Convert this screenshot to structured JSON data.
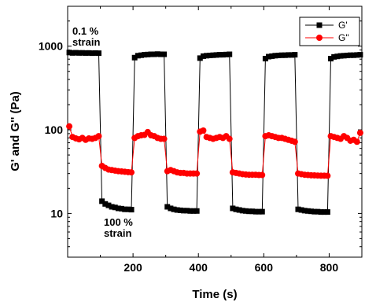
{
  "chart_data": {
    "type": "scatter",
    "title": "",
    "xlabel": "Time (s)",
    "ylabel": "G' and G'' (Pa)",
    "xlim": [
      0,
      900
    ],
    "ylim": [
      3,
      3000
    ],
    "y_scale": "log",
    "x_ticks": [
      200,
      400,
      600,
      800
    ],
    "y_ticks": [
      10,
      100,
      1000
    ],
    "x_tick_labels": [
      "200",
      "400",
      "600",
      "800"
    ],
    "y_tick_labels": [
      "10",
      "100",
      "1000"
    ],
    "grid": false,
    "legend_position": "top-right",
    "annotations": {
      "low_strain": [
        "0.1 %",
        "strain"
      ],
      "high_strain": [
        "100 %",
        "strain"
      ]
    },
    "series": [
      {
        "name": "G'",
        "color": "#000000",
        "marker": "square",
        "points": [
          [
            5,
            840
          ],
          [
            15,
            830
          ],
          [
            25,
            835
          ],
          [
            35,
            830
          ],
          [
            45,
            832
          ],
          [
            55,
            828
          ],
          [
            65,
            830
          ],
          [
            75,
            825
          ],
          [
            85,
            828
          ],
          [
            95,
            825
          ],
          [
            105,
            14
          ],
          [
            115,
            13
          ],
          [
            125,
            12.5
          ],
          [
            135,
            12
          ],
          [
            145,
            11.8
          ],
          [
            155,
            11.5
          ],
          [
            165,
            11.4
          ],
          [
            175,
            11.2
          ],
          [
            185,
            11.2
          ],
          [
            195,
            11.1
          ],
          [
            205,
            730
          ],
          [
            215,
            770
          ],
          [
            225,
            780
          ],
          [
            235,
            790
          ],
          [
            245,
            795
          ],
          [
            255,
            800
          ],
          [
            265,
            800
          ],
          [
            275,
            805
          ],
          [
            285,
            800
          ],
          [
            295,
            800
          ],
          [
            305,
            12
          ],
          [
            315,
            11.5
          ],
          [
            325,
            11.2
          ],
          [
            335,
            11
          ],
          [
            345,
            10.9
          ],
          [
            355,
            10.8
          ],
          [
            365,
            10.8
          ],
          [
            375,
            10.7
          ],
          [
            385,
            10.7
          ],
          [
            395,
            10.7
          ],
          [
            405,
            720
          ],
          [
            415,
            760
          ],
          [
            425,
            770
          ],
          [
            435,
            775
          ],
          [
            445,
            780
          ],
          [
            455,
            785
          ],
          [
            465,
            790
          ],
          [
            475,
            790
          ],
          [
            485,
            795
          ],
          [
            495,
            800
          ],
          [
            505,
            11.5
          ],
          [
            515,
            11.2
          ],
          [
            525,
            11
          ],
          [
            535,
            10.8
          ],
          [
            545,
            10.7
          ],
          [
            555,
            10.6
          ],
          [
            565,
            10.6
          ],
          [
            575,
            10.5
          ],
          [
            585,
            10.5
          ],
          [
            595,
            10.5
          ],
          [
            605,
            710
          ],
          [
            615,
            750
          ],
          [
            625,
            760
          ],
          [
            635,
            770
          ],
          [
            645,
            775
          ],
          [
            655,
            780
          ],
          [
            665,
            780
          ],
          [
            675,
            785
          ],
          [
            685,
            785
          ],
          [
            695,
            790
          ],
          [
            705,
            11.2
          ],
          [
            715,
            11
          ],
          [
            725,
            10.8
          ],
          [
            735,
            10.7
          ],
          [
            745,
            10.6
          ],
          [
            755,
            10.5
          ],
          [
            765,
            10.5
          ],
          [
            775,
            10.4
          ],
          [
            785,
            10.4
          ],
          [
            795,
            10.4
          ],
          [
            805,
            710
          ],
          [
            815,
            745
          ],
          [
            825,
            755
          ],
          [
            835,
            765
          ],
          [
            845,
            770
          ],
          [
            855,
            775
          ],
          [
            865,
            780
          ],
          [
            875,
            780
          ],
          [
            885,
            785
          ],
          [
            895,
            790
          ]
        ]
      },
      {
        "name": "G\"",
        "color": "#ff0000",
        "marker": "circle",
        "points": [
          [
            5,
            110
          ],
          [
            15,
            82
          ],
          [
            25,
            79
          ],
          [
            35,
            77
          ],
          [
            45,
            80
          ],
          [
            55,
            76
          ],
          [
            65,
            79
          ],
          [
            75,
            78
          ],
          [
            85,
            80
          ],
          [
            95,
            84
          ],
          [
            105,
            37
          ],
          [
            115,
            35
          ],
          [
            125,
            33.5
          ],
          [
            135,
            33
          ],
          [
            145,
            32.5
          ],
          [
            155,
            32
          ],
          [
            165,
            31.8
          ],
          [
            175,
            31.5
          ],
          [
            185,
            31.2
          ],
          [
            195,
            31
          ],
          [
            205,
            80
          ],
          [
            215,
            84
          ],
          [
            225,
            86
          ],
          [
            235,
            87
          ],
          [
            245,
            94
          ],
          [
            255,
            86
          ],
          [
            265,
            84
          ],
          [
            275,
            80
          ],
          [
            285,
            78
          ],
          [
            295,
            78
          ],
          [
            305,
            32
          ],
          [
            315,
            33
          ],
          [
            325,
            32
          ],
          [
            335,
            31
          ],
          [
            345,
            30.5
          ],
          [
            355,
            30.5
          ],
          [
            365,
            30
          ],
          [
            375,
            30
          ],
          [
            385,
            30
          ],
          [
            395,
            30
          ],
          [
            405,
            95
          ],
          [
            415,
            98
          ],
          [
            425,
            82
          ],
          [
            435,
            80
          ],
          [
            445,
            78
          ],
          [
            455,
            80
          ],
          [
            465,
            82
          ],
          [
            475,
            80
          ],
          [
            485,
            84
          ],
          [
            495,
            78
          ],
          [
            505,
            31
          ],
          [
            515,
            30.5
          ],
          [
            525,
            30
          ],
          [
            535,
            29.5
          ],
          [
            545,
            29.2
          ],
          [
            555,
            29
          ],
          [
            565,
            29
          ],
          [
            575,
            29
          ],
          [
            585,
            28.8
          ],
          [
            595,
            28.8
          ],
          [
            605,
            84
          ],
          [
            615,
            86
          ],
          [
            625,
            84
          ],
          [
            635,
            82
          ],
          [
            645,
            80
          ],
          [
            655,
            80
          ],
          [
            665,
            78
          ],
          [
            675,
            76
          ],
          [
            685,
            74
          ],
          [
            695,
            72
          ],
          [
            705,
            30
          ],
          [
            715,
            29.5
          ],
          [
            725,
            29
          ],
          [
            735,
            28.8
          ],
          [
            745,
            28.6
          ],
          [
            755,
            28.5
          ],
          [
            765,
            28.4
          ],
          [
            775,
            28.3
          ],
          [
            785,
            28.3
          ],
          [
            795,
            28.2
          ],
          [
            805,
            84
          ],
          [
            815,
            82
          ],
          [
            825,
            80
          ],
          [
            835,
            78
          ],
          [
            845,
            84
          ],
          [
            855,
            80
          ],
          [
            865,
            74
          ],
          [
            875,
            76
          ],
          [
            885,
            72
          ],
          [
            895,
            92
          ]
        ]
      }
    ]
  }
}
